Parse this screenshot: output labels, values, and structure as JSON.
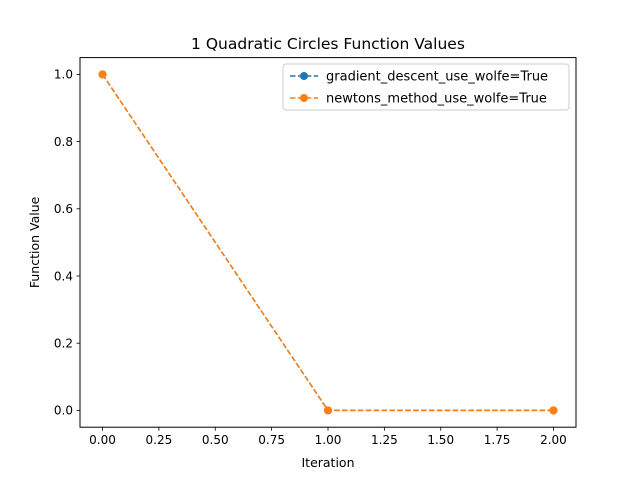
{
  "chart_data": {
    "type": "line",
    "title": "1 Quadratic Circles Function Values",
    "xlabel": "Iteration",
    "ylabel": "Function Value",
    "x": [
      0,
      1,
      2
    ],
    "xlim": [
      -0.1,
      2.1
    ],
    "ylim": [
      -0.05,
      1.05
    ],
    "xticks": [
      0.0,
      0.25,
      0.5,
      0.75,
      1.0,
      1.25,
      1.5,
      1.75,
      2.0
    ],
    "xtick_labels": [
      "0.00",
      "0.25",
      "0.50",
      "0.75",
      "1.00",
      "1.25",
      "1.50",
      "1.75",
      "2.00"
    ],
    "yticks": [
      0.0,
      0.2,
      0.4,
      0.6,
      0.8,
      1.0
    ],
    "ytick_labels": [
      "0.0",
      "0.2",
      "0.4",
      "0.6",
      "0.8",
      "1.0"
    ],
    "grid": false,
    "legend_position": "top-right",
    "series": [
      {
        "name": "gradient_descent_use_wolfe=True",
        "values": [
          1.0,
          0.0,
          0.0
        ],
        "color": "#1f77b4",
        "linestyle": "dashed",
        "marker": "circle"
      },
      {
        "name": "newtons_method_use_wolfe=True",
        "values": [
          1.0,
          0.0,
          0.0
        ],
        "color": "#ff7f0e",
        "linestyle": "dashed",
        "marker": "circle"
      }
    ]
  }
}
